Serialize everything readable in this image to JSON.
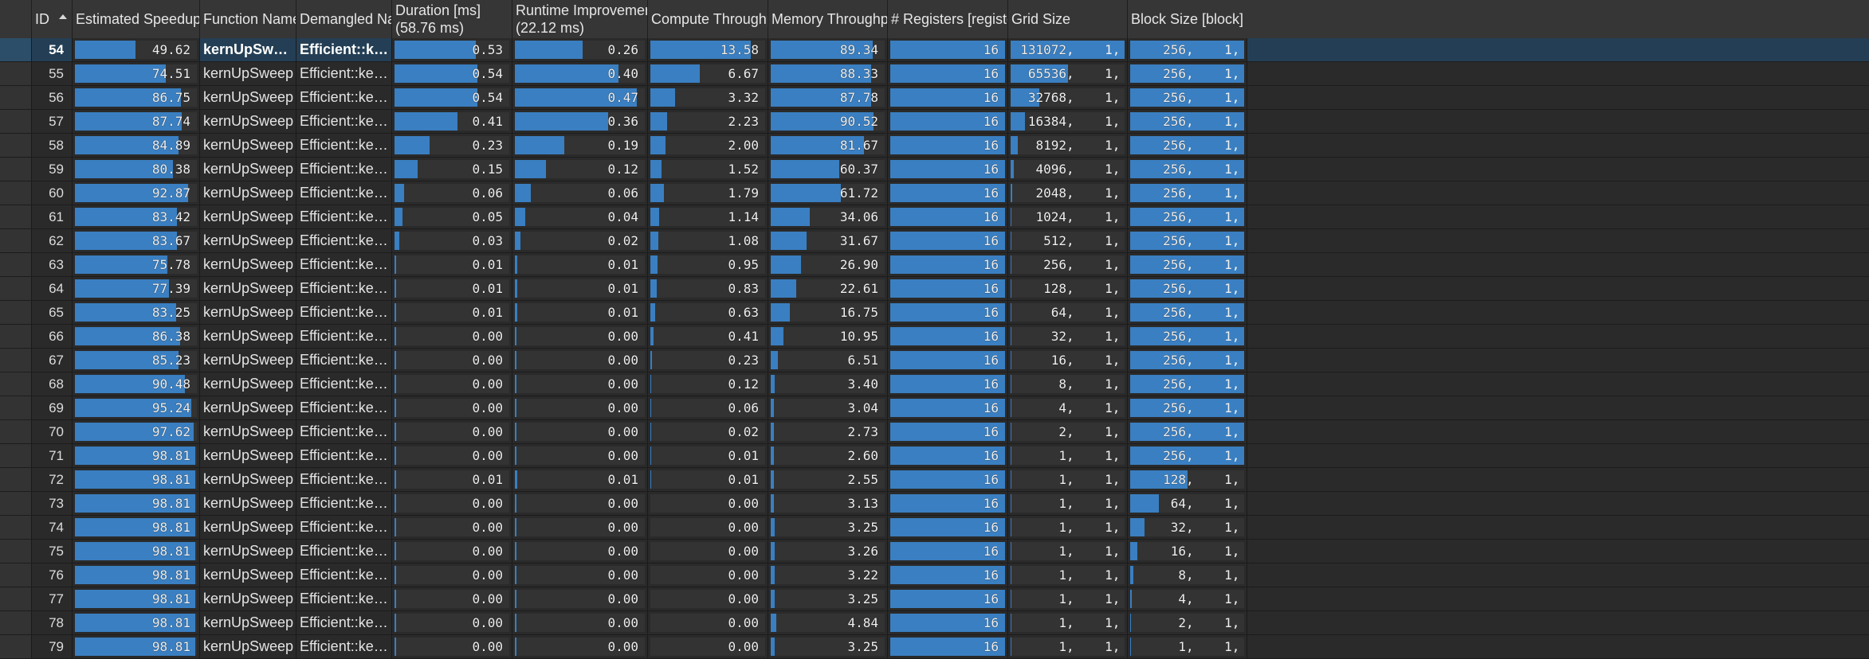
{
  "columns": [
    {
      "key": "gutter",
      "label": ""
    },
    {
      "key": "id",
      "label": "ID"
    },
    {
      "key": "speedup",
      "label": "Estimated Speedup [%]"
    },
    {
      "key": "func",
      "label": "Function Name"
    },
    {
      "key": "demangled",
      "label": "Demangled Name"
    },
    {
      "key": "duration",
      "label": "Duration [ms]",
      "sub": "(58.76 ms)"
    },
    {
      "key": "runtime",
      "label": "Runtime Improvement [ms]",
      "sub": "(22.12 ms)"
    },
    {
      "key": "compute",
      "label": "Compute Throughput [%]"
    },
    {
      "key": "memory",
      "label": "Memory Throughput [%]"
    },
    {
      "key": "registers",
      "label": "# Registers [register/thread]"
    },
    {
      "key": "grid",
      "label": "Grid Size"
    },
    {
      "key": "block",
      "label": "Block Size [block]"
    }
  ],
  "sort": {
    "column": "id",
    "direction": "ascending"
  },
  "colors": {
    "bar": "#3a7fc1",
    "selected_row": "#243f55",
    "header": "#363636"
  },
  "selected_id": "54",
  "bar_max": {
    "speedup": 100,
    "duration": 0.75,
    "runtime": 0.5,
    "compute": 15.5,
    "memory": 100,
    "registers": 16,
    "grid": 131072,
    "block": 256
  },
  "rows": [
    {
      "id": "54",
      "speedup": "49.62",
      "func": "kernUpSweep",
      "demangled": "Efficient::kernUpS...",
      "duration": "0.53",
      "runtime": "0.26",
      "compute": "13.58",
      "memory": "89.34",
      "registers": "16",
      "grid": "131072",
      "block": "256"
    },
    {
      "id": "55",
      "speedup": "74.51",
      "func": "kernUpSweep",
      "demangled": "Efficient::kernUpSw...",
      "duration": "0.54",
      "runtime": "0.40",
      "compute": "6.67",
      "memory": "88.33",
      "registers": "16",
      "grid": "65536",
      "block": "256"
    },
    {
      "id": "56",
      "speedup": "86.75",
      "func": "kernUpSweep",
      "demangled": "Efficient::kernUpSw...",
      "duration": "0.54",
      "runtime": "0.47",
      "compute": "3.32",
      "memory": "87.78",
      "registers": "16",
      "grid": "32768",
      "block": "256"
    },
    {
      "id": "57",
      "speedup": "87.74",
      "func": "kernUpSweep",
      "demangled": "Efficient::kernUpSw...",
      "duration": "0.41",
      "runtime": "0.36",
      "compute": "2.23",
      "memory": "90.52",
      "registers": "16",
      "grid": "16384",
      "block": "256"
    },
    {
      "id": "58",
      "speedup": "84.89",
      "func": "kernUpSweep",
      "demangled": "Efficient::kernUpSw...",
      "duration": "0.23",
      "runtime": "0.19",
      "compute": "2.00",
      "memory": "81.67",
      "registers": "16",
      "grid": "8192",
      "block": "256"
    },
    {
      "id": "59",
      "speedup": "80.38",
      "func": "kernUpSweep",
      "demangled": "Efficient::kernUpSw...",
      "duration": "0.15",
      "runtime": "0.12",
      "compute": "1.52",
      "memory": "60.37",
      "registers": "16",
      "grid": "4096",
      "block": "256"
    },
    {
      "id": "60",
      "speedup": "92.87",
      "func": "kernUpSweep",
      "demangled": "Efficient::kernUpSw...",
      "duration": "0.06",
      "runtime": "0.06",
      "compute": "1.79",
      "memory": "61.72",
      "registers": "16",
      "grid": "2048",
      "block": "256"
    },
    {
      "id": "61",
      "speedup": "83.42",
      "func": "kernUpSweep",
      "demangled": "Efficient::kernUpSw...",
      "duration": "0.05",
      "runtime": "0.04",
      "compute": "1.14",
      "memory": "34.06",
      "registers": "16",
      "grid": "1024",
      "block": "256"
    },
    {
      "id": "62",
      "speedup": "83.67",
      "func": "kernUpSweep",
      "demangled": "Efficient::kernUpSw...",
      "duration": "0.03",
      "runtime": "0.02",
      "compute": "1.08",
      "memory": "31.67",
      "registers": "16",
      "grid": "512",
      "block": "256"
    },
    {
      "id": "63",
      "speedup": "75.78",
      "func": "kernUpSweep",
      "demangled": "Efficient::kernUpSw...",
      "duration": "0.01",
      "runtime": "0.01",
      "compute": "0.95",
      "memory": "26.90",
      "registers": "16",
      "grid": "256",
      "block": "256"
    },
    {
      "id": "64",
      "speedup": "77.39",
      "func": "kernUpSweep",
      "demangled": "Efficient::kernUpSw...",
      "duration": "0.01",
      "runtime": "0.01",
      "compute": "0.83",
      "memory": "22.61",
      "registers": "16",
      "grid": "128",
      "block": "256"
    },
    {
      "id": "65",
      "speedup": "83.25",
      "func": "kernUpSweep",
      "demangled": "Efficient::kernUpSw...",
      "duration": "0.01",
      "runtime": "0.01",
      "compute": "0.63",
      "memory": "16.75",
      "registers": "16",
      "grid": "64",
      "block": "256"
    },
    {
      "id": "66",
      "speedup": "86.38",
      "func": "kernUpSweep",
      "demangled": "Efficient::kernUpSw...",
      "duration": "0.00",
      "runtime": "0.00",
      "compute": "0.41",
      "memory": "10.95",
      "registers": "16",
      "grid": "32",
      "block": "256"
    },
    {
      "id": "67",
      "speedup": "85.23",
      "func": "kernUpSweep",
      "demangled": "Efficient::kernUpSw...",
      "duration": "0.00",
      "runtime": "0.00",
      "compute": "0.23",
      "memory": "6.51",
      "registers": "16",
      "grid": "16",
      "block": "256"
    },
    {
      "id": "68",
      "speedup": "90.48",
      "func": "kernUpSweep",
      "demangled": "Efficient::kernUpSw...",
      "duration": "0.00",
      "runtime": "0.00",
      "compute": "0.12",
      "memory": "3.40",
      "registers": "16",
      "grid": "8",
      "block": "256"
    },
    {
      "id": "69",
      "speedup": "95.24",
      "func": "kernUpSweep",
      "demangled": "Efficient::kernUpSw...",
      "duration": "0.00",
      "runtime": "0.00",
      "compute": "0.06",
      "memory": "3.04",
      "registers": "16",
      "grid": "4",
      "block": "256"
    },
    {
      "id": "70",
      "speedup": "97.62",
      "func": "kernUpSweep",
      "demangled": "Efficient::kernUpSw...",
      "duration": "0.00",
      "runtime": "0.00",
      "compute": "0.02",
      "memory": "2.73",
      "registers": "16",
      "grid": "2",
      "block": "256"
    },
    {
      "id": "71",
      "speedup": "98.81",
      "func": "kernUpSweep",
      "demangled": "Efficient::kernUpSw...",
      "duration": "0.00",
      "runtime": "0.00",
      "compute": "0.01",
      "memory": "2.60",
      "registers": "16",
      "grid": "1",
      "block": "256"
    },
    {
      "id": "72",
      "speedup": "98.81",
      "func": "kernUpSweep",
      "demangled": "Efficient::kernUpSw...",
      "duration": "0.01",
      "runtime": "0.01",
      "compute": "0.01",
      "memory": "2.55",
      "registers": "16",
      "grid": "1",
      "block": "128"
    },
    {
      "id": "73",
      "speedup": "98.81",
      "func": "kernUpSweep",
      "demangled": "Efficient::kernUpSw...",
      "duration": "0.00",
      "runtime": "0.00",
      "compute": "0.00",
      "memory": "3.13",
      "registers": "16",
      "grid": "1",
      "block": "64"
    },
    {
      "id": "74",
      "speedup": "98.81",
      "func": "kernUpSweep",
      "demangled": "Efficient::kernUpSw...",
      "duration": "0.00",
      "runtime": "0.00",
      "compute": "0.00",
      "memory": "3.25",
      "registers": "16",
      "grid": "1",
      "block": "32"
    },
    {
      "id": "75",
      "speedup": "98.81",
      "func": "kernUpSweep",
      "demangled": "Efficient::kernUpSw...",
      "duration": "0.00",
      "runtime": "0.00",
      "compute": "0.00",
      "memory": "3.26",
      "registers": "16",
      "grid": "1",
      "block": "16"
    },
    {
      "id": "76",
      "speedup": "98.81",
      "func": "kernUpSweep",
      "demangled": "Efficient::kernUpSw...",
      "duration": "0.00",
      "runtime": "0.00",
      "compute": "0.00",
      "memory": "3.22",
      "registers": "16",
      "grid": "1",
      "block": "8"
    },
    {
      "id": "77",
      "speedup": "98.81",
      "func": "kernUpSweep",
      "demangled": "Efficient::kernUpSw...",
      "duration": "0.00",
      "runtime": "0.00",
      "compute": "0.00",
      "memory": "3.25",
      "registers": "16",
      "grid": "1",
      "block": "4"
    },
    {
      "id": "78",
      "speedup": "98.81",
      "func": "kernUpSweep",
      "demangled": "Efficient::kernUpSw...",
      "duration": "0.00",
      "runtime": "0.00",
      "compute": "0.00",
      "memory": "4.84",
      "registers": "16",
      "grid": "1",
      "block": "2"
    },
    {
      "id": "79",
      "speedup": "98.81",
      "func": "kernUpSweep",
      "demangled": "Efficient::kernUpSw...",
      "duration": "0.00",
      "runtime": "0.00",
      "compute": "0.00",
      "memory": "3.25",
      "registers": "16",
      "grid": "1",
      "block": "1"
    }
  ]
}
